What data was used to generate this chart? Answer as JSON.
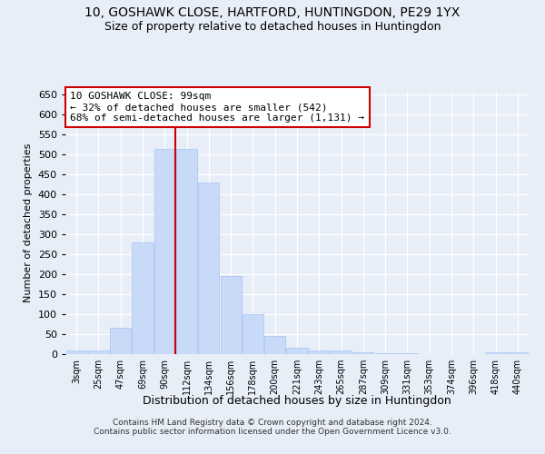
{
  "title1": "10, GOSHAWK CLOSE, HARTFORD, HUNTINGDON, PE29 1YX",
  "title2": "Size of property relative to detached houses in Huntingdon",
  "xlabel": "Distribution of detached houses by size in Huntingdon",
  "ylabel": "Number of detached properties",
  "categories": [
    "3sqm",
    "25sqm",
    "47sqm",
    "69sqm",
    "90sqm",
    "112sqm",
    "134sqm",
    "156sqm",
    "178sqm",
    "200sqm",
    "221sqm",
    "243sqm",
    "265sqm",
    "287sqm",
    "309sqm",
    "331sqm",
    "353sqm",
    "374sqm",
    "396sqm",
    "418sqm",
    "440sqm"
  ],
  "values": [
    10,
    10,
    65,
    280,
    515,
    515,
    430,
    195,
    100,
    45,
    15,
    10,
    8,
    5,
    3,
    2,
    1,
    0,
    0,
    5,
    5
  ],
  "bar_color": "#c9daf8",
  "bar_edge_color": "#a4c2f4",
  "vline_x": 4.5,
  "vline_color": "#cc0000",
  "annotation_title": "10 GOSHAWK CLOSE: 99sqm",
  "annotation_line1": "← 32% of detached houses are smaller (542)",
  "annotation_line2": "68% of semi-detached houses are larger (1,131) →",
  "annotation_box_color": "#ffffff",
  "annotation_box_edge": "#cc0000",
  "ylim": [
    0,
    660
  ],
  "yticks": [
    0,
    50,
    100,
    150,
    200,
    250,
    300,
    350,
    400,
    450,
    500,
    550,
    600,
    650
  ],
  "footer1": "Contains HM Land Registry data © Crown copyright and database right 2024.",
  "footer2": "Contains public sector information licensed under the Open Government Licence v3.0.",
  "bg_color": "#e8eef8",
  "plot_bg_color": "#e8eef8",
  "grid_color": "#ffffff",
  "title1_fontsize": 10,
  "title2_fontsize": 9
}
